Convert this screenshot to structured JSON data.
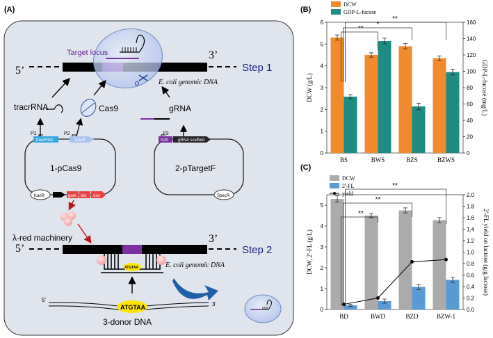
{
  "panel_a": {
    "label": "(A)",
    "five_prime_1": "5’",
    "three_prime_1": "3’",
    "target_locus": "Target locus",
    "step1": "Step 1",
    "genomic_1": "E. coli genomic DNA",
    "tracrrna": "tracrRNA",
    "cas9": "Cas9",
    "grna": "gRNA",
    "p1": "P1",
    "p2": "P2",
    "p3": "P3",
    "tracr_box": "tracrRNA",
    "cas9_box": "Cas9",
    "n20_box": "N20",
    "scaffold_box": "gRNA scaffold",
    "plasmid1": "1-pCas9",
    "plasmid2": "2-pTargetF",
    "kan": "KanR",
    "spec": "SpecR",
    "gam": "gam",
    "bet": "bet",
    "exo": "exo",
    "lambda_red": "λ-red machinery",
    "five_prime_2": "5’",
    "three_prime_2": "3’",
    "step2": "Step 2",
    "genomic_2": "E. coli genomic DNA",
    "atgtaa_small": "ATGTAA",
    "donor_5": "5’",
    "donor_3": "3’",
    "atgtaa_big": "ATGTAA",
    "donor_label": "3-donor DNA"
  },
  "chart_data": [
    {
      "panel_label": "(B)",
      "type": "bar",
      "categories": [
        "BS",
        "BWS",
        "BZS",
        "BZWS"
      ],
      "series": [
        {
          "name": "DCW",
          "axis": "left",
          "color": "#f08a2c",
          "values": [
            5.3,
            4.5,
            4.9,
            4.35
          ],
          "errors": [
            0.12,
            0.1,
            0.12,
            0.1
          ]
        },
        {
          "name": "GDP-L-fucose",
          "axis": "right",
          "color": "#1f8c84",
          "values": [
            69,
            137,
            57,
            99
          ],
          "errors": [
            2.5,
            3.5,
            4,
            3.5
          ]
        }
      ],
      "ylabel": "DCW (g/L)",
      "y2label": "GDP-L-fucose (mg/L)",
      "ylim": [
        0,
        6
      ],
      "yticks": [
        "0",
        "1",
        "2",
        "3",
        "4",
        "5",
        "6"
      ],
      "y2lim": [
        0,
        160
      ],
      "y2ticks": [
        "0",
        "20",
        "40",
        "60",
        "80",
        "100",
        "120",
        "140",
        "160"
      ],
      "legend_placement": "top-left",
      "significance": [
        "**",
        "*",
        "**"
      ]
    },
    {
      "panel_label": "(C)",
      "type": "bar",
      "categories": [
        "BD",
        "BWD",
        "BZD",
        "BZW-1"
      ],
      "series": [
        {
          "name": "DCW",
          "axis": "left",
          "color": "#ababab",
          "values": [
            5.3,
            4.5,
            4.75,
            4.28
          ],
          "errors": [
            0.15,
            0.1,
            0.12,
            0.12
          ]
        },
        {
          "name": "2'-FL",
          "axis": "left",
          "color": "#5b9bd5",
          "values": [
            0.2,
            0.4,
            1.08,
            1.42
          ],
          "errors": [
            0.05,
            0.1,
            0.12,
            0.12
          ]
        },
        {
          "name": "yield",
          "axis": "right",
          "type": "line",
          "color": "#000000",
          "values": [
            0.09,
            0.2,
            0.83,
            0.87
          ]
        }
      ],
      "ylabel": "DCW, 2'-FL (g/L)",
      "y2label": "2'-FL yield on lactose (g/g lactose)",
      "ylim": [
        0,
        5.5
      ],
      "yticks": [
        "0",
        "1",
        "2",
        "3",
        "4",
        "5"
      ],
      "y2lim": [
        0,
        2.0
      ],
      "y2ticks": [
        "0.0",
        "0.2",
        "0.4",
        "0.6",
        "0.8",
        "1.0",
        "1.2",
        "1.4",
        "1.6",
        "1.8",
        "2.0"
      ],
      "legend_placement": "top-left",
      "significance": [
        "**",
        "**",
        "**"
      ]
    }
  ]
}
